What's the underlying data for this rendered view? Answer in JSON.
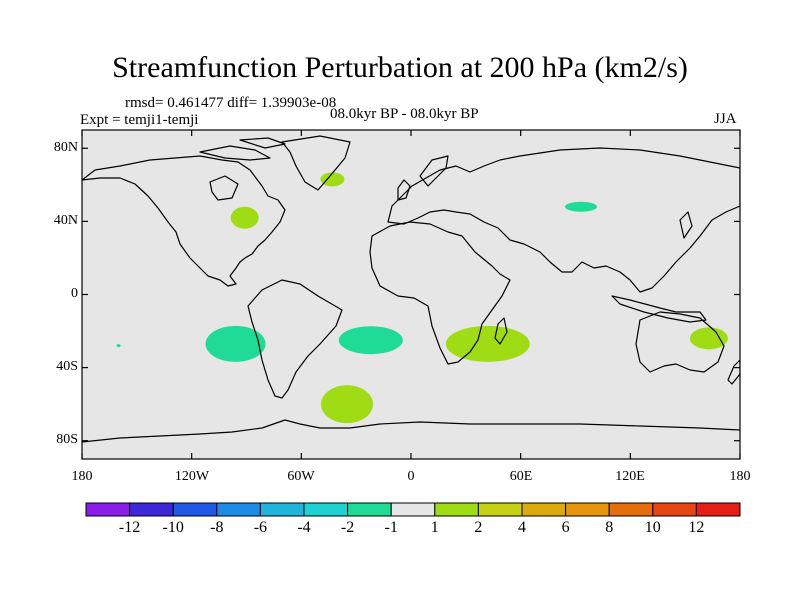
{
  "title": "Streamfunction Perturbation at 200 hPa (km2/s)",
  "stats": "rmsd= 0.461477 diff= 1.39903e-08",
  "experiment": "Expt = temji1-temji",
  "period": "08.0kyr BP - 08.0kyr BP",
  "season": "JJA",
  "background_color": "#e6e6e6",
  "lat_labels": [
    "80N",
    "40N",
    "0",
    "40S",
    "80S"
  ],
  "lon_labels": [
    "180",
    "120W",
    "60W",
    "0",
    "60E",
    "120E",
    "180"
  ],
  "colorbar": {
    "colors": [
      "#8c1eec",
      "#3c28d8",
      "#1e5ae6",
      "#1e8ce6",
      "#1eb4dc",
      "#1ed2d2",
      "#1edc96",
      "#e6e6e6",
      "#a0dc14",
      "#c8d214",
      "#dcaa0a",
      "#e6960a",
      "#e66e0a",
      "#e64614",
      "#e61e14"
    ],
    "labels": [
      "-12",
      "-10",
      "-8",
      "-6",
      "-4",
      "-2",
      "-1",
      "1",
      "2",
      "4",
      "6",
      "8",
      "10",
      "12"
    ]
  },
  "chart_data": {
    "type": "map-contour",
    "title": "Streamfunction Perturbation at 200 hPa (km2/s)",
    "projection": "cylindrical-equidistant",
    "lon_range": [
      -180,
      180
    ],
    "lat_range": [
      -90,
      90
    ],
    "contour_levels": [
      -12,
      -10,
      -8,
      -6,
      -4,
      -2,
      -1,
      1,
      2,
      4,
      6,
      8,
      10,
      12
    ],
    "anomalies": [
      {
        "name": "greenland-positive",
        "lon": -43,
        "lat": 63,
        "value": 1.5,
        "color": "#a0dc14"
      },
      {
        "name": "north-america-positive",
        "lon": -91,
        "lat": 42,
        "value": 1.5,
        "color": "#a0dc14"
      },
      {
        "name": "central-asia-negative",
        "lon": 93,
        "lat": 48,
        "value": -1.5,
        "color": "#1edc96"
      },
      {
        "name": "southeast-pacific-negative",
        "lon": -96,
        "lat": -27,
        "value": -1.5,
        "color": "#1edc96"
      },
      {
        "name": "south-atlantic-negative",
        "lon": -22,
        "lat": -25,
        "value": -1.5,
        "color": "#1edc96"
      },
      {
        "name": "south-africa-indian-positive",
        "lon": 42,
        "lat": -27,
        "value": 1.5,
        "color": "#a0dc14"
      },
      {
        "name": "east-australia-positive",
        "lon": 163,
        "lat": -24,
        "value": 1.5,
        "color": "#a0dc14"
      },
      {
        "name": "southern-ocean-positive",
        "lon": -35,
        "lat": -60,
        "value": 1.5,
        "color": "#a0dc14"
      },
      {
        "name": "small-pacific-negative",
        "lon": -160,
        "lat": -28,
        "value": -1.2,
        "color": "#1edc96"
      }
    ]
  }
}
